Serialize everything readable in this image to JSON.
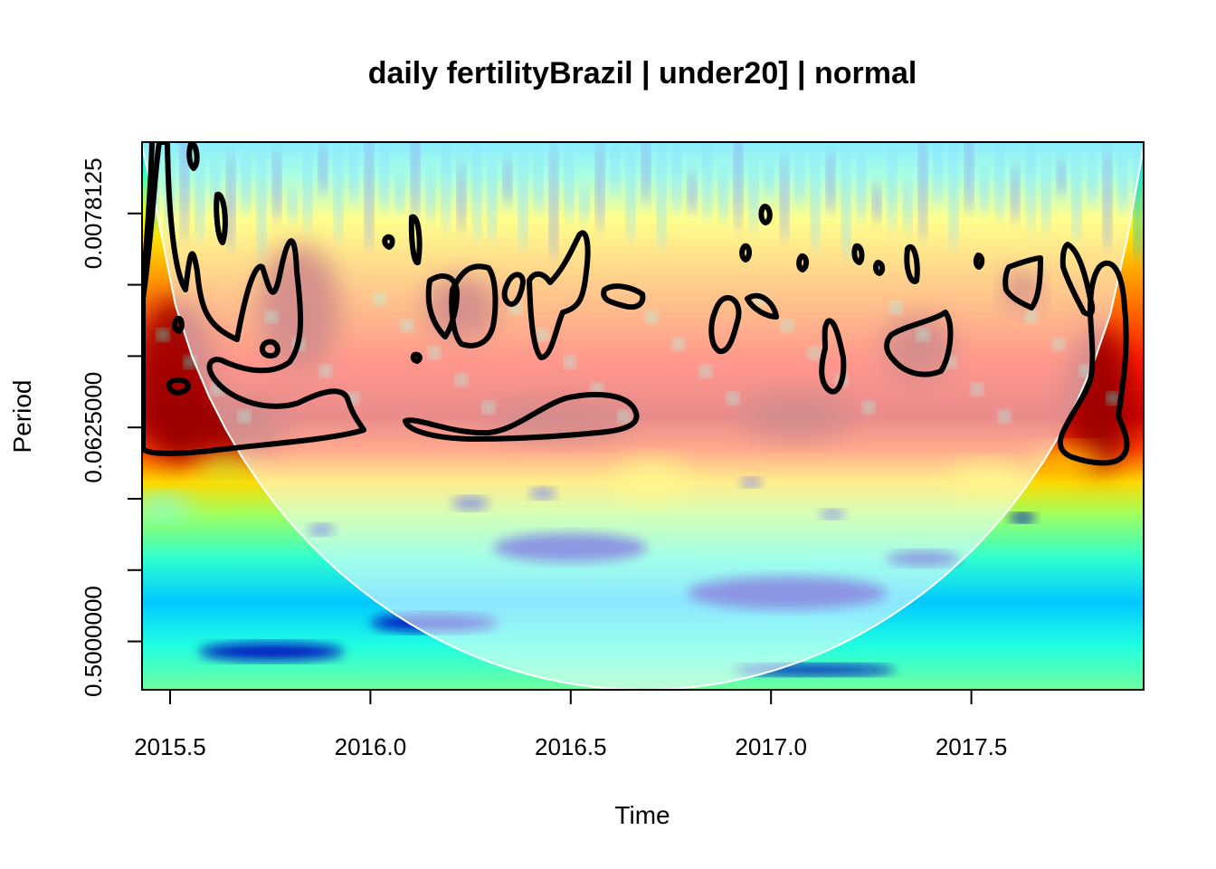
{
  "chart_data": {
    "type": "heatmap",
    "title": "daily fertilityBrazil | under20] | normal",
    "xlabel": "Time",
    "ylabel": "Period",
    "xlim": [
      2015.43,
      2017.93
    ],
    "x_ticks": [
      2015.5,
      2016.0,
      2016.5,
      2017.0,
      2017.5
    ],
    "x_tick_labels": [
      "2015.5",
      "2016.0",
      "2016.5",
      "2017.0",
      "2017.5"
    ],
    "y_scale": "log2",
    "ylim": [
      0.00390625,
      0.8
    ],
    "y_ticks": [
      0.0078125,
      0.015625,
      0.03125,
      0.0625,
      0.125,
      0.25,
      0.5
    ],
    "y_tick_labels": [
      "0.0078125",
      "",
      "",
      "0.0625000",
      "",
      "",
      "0.5000000"
    ],
    "colormap": [
      "#00007f",
      "#0000ff",
      "#007fff",
      "#00ffff",
      "#7fff7f",
      "#ffff00",
      "#ff7f00",
      "#ff0000",
      "#7f0000"
    ],
    "grid": false,
    "legend": "none",
    "cone_of_influence": true,
    "significance_contours": true
  }
}
